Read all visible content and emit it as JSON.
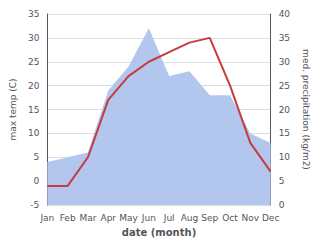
{
  "chart_data": {
    "type": "line",
    "categories": [
      "Jan",
      "Feb",
      "Mar",
      "Apr",
      "May",
      "Jun",
      "Jul",
      "Aug",
      "Sep",
      "Oct",
      "Nov",
      "Dec"
    ],
    "xlabel": "date (month)",
    "ylabel": "max temp (C)",
    "y2label": "med. precipitation (kg/m2)",
    "series": [
      {
        "type": "area",
        "axis": "y2",
        "color": "#b3c6ee",
        "values": [
          9,
          10,
          11,
          24,
          29,
          37,
          27,
          28,
          23,
          23,
          15,
          13
        ]
      },
      {
        "type": "line",
        "color": "#c43c3c",
        "values": [
          -1,
          -1,
          5,
          17,
          22,
          25,
          27,
          29,
          30,
          20,
          8,
          2
        ]
      }
    ],
    "ylim": [
      -5,
      35
    ],
    "yticks": [
      -5,
      0,
      5,
      10,
      15,
      20,
      25,
      30,
      35
    ],
    "y2lim": [
      0,
      40
    ],
    "y2ticks": [
      0,
      5,
      10,
      15,
      20,
      25,
      30,
      35,
      40
    ],
    "grid": true
  }
}
